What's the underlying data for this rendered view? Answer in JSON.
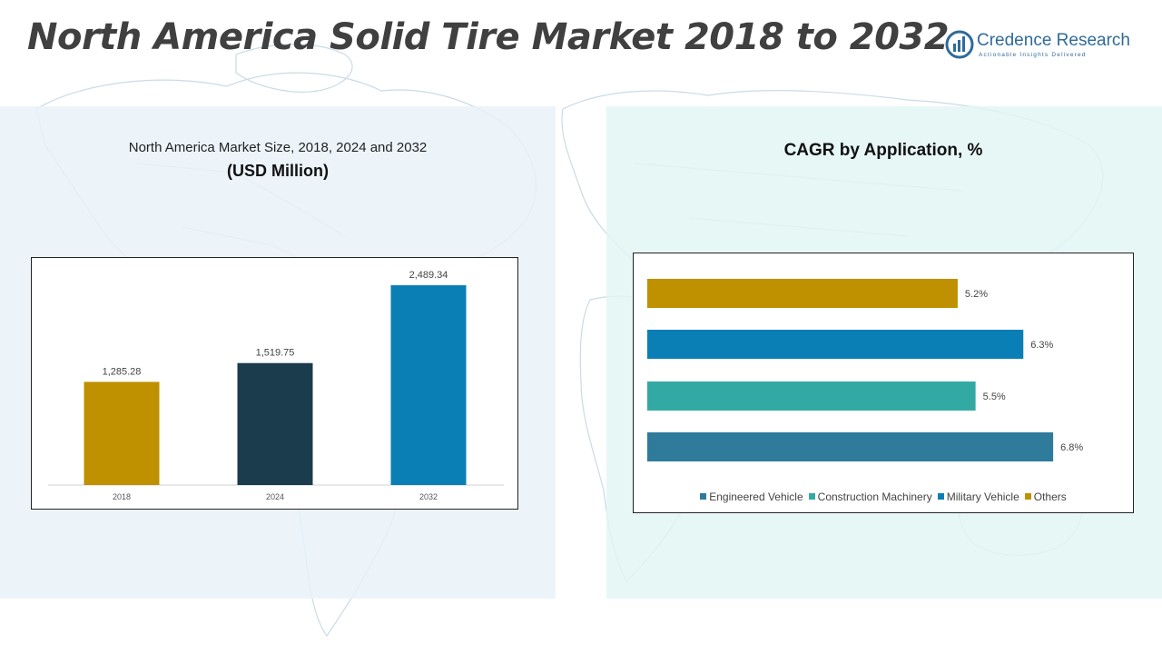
{
  "header": {
    "title": "North America Solid Tire Market 2018 to 2032",
    "brand_name": "Credence Research",
    "brand_tagline": "Actionable Insights Delivered"
  },
  "left_panel": {
    "subtitle": "North America Market Size, 2018, 2024 and 2032",
    "unit_label": "(USD Million)"
  },
  "right_panel": {
    "title": "CAGR by Application, %"
  },
  "chart_data": [
    {
      "type": "bar",
      "title": "North America Market Size, 2018, 2024 and 2032",
      "ylabel": "(USD Million)",
      "categories": [
        "2018",
        "2024",
        "2032"
      ],
      "values": [
        1285.28,
        1519.75,
        2489.34
      ],
      "data_labels": [
        "1,285.28",
        "1,519.75",
        "2,489.34"
      ],
      "colors": [
        "#bf9000",
        "#1a3c4d",
        "#0a7fb5"
      ],
      "ylim": [
        0,
        3000
      ],
      "grid": false,
      "legend": "none"
    },
    {
      "type": "bar",
      "orientation": "horizontal",
      "title": "CAGR by Application, %",
      "categories": [
        "Others",
        "Military Vehicle",
        "Construction Machinery",
        "Engineered Vehicle"
      ],
      "values": [
        5.2,
        6.3,
        5.5,
        6.8
      ],
      "data_labels": [
        "5.2%",
        "6.3%",
        "5.5%",
        "6.8%"
      ],
      "colors": [
        "#bf9000",
        "#0a7fb5",
        "#33a9a4",
        "#2e7b9b"
      ],
      "xlim": [
        0,
        7.3
      ],
      "grid": false,
      "legend": "bottom",
      "legend_entries": [
        {
          "label": "Engineered Vehicle",
          "color": "#2e7b9b"
        },
        {
          "label": "Construction Machinery",
          "color": "#33a9a4"
        },
        {
          "label": "Military Vehicle",
          "color": "#0a7fb5"
        },
        {
          "label": "Others",
          "color": "#bf9000"
        }
      ]
    }
  ]
}
